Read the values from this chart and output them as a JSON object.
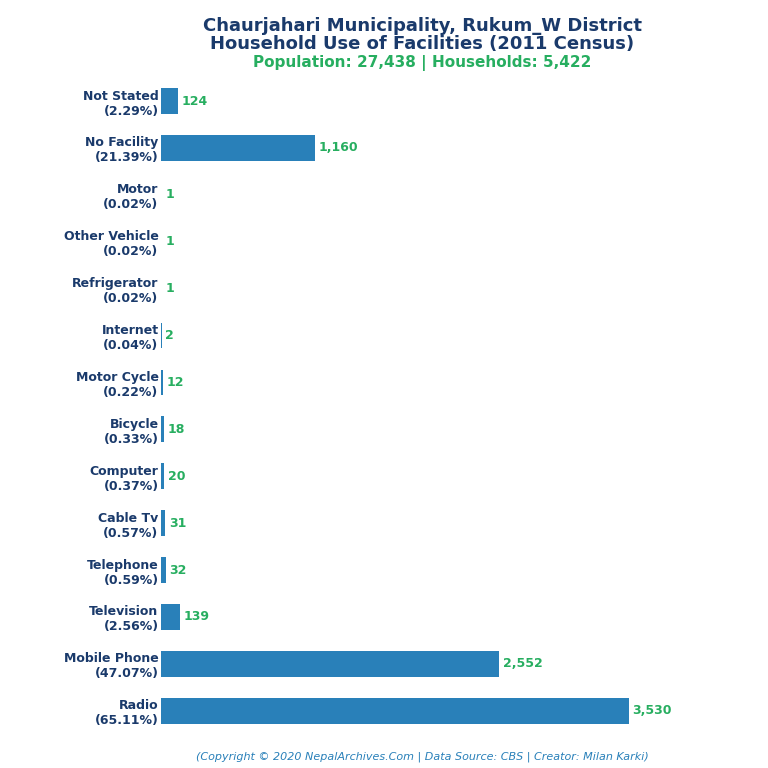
{
  "title_line1": "Chaurjahari Municipality, Rukum_W District",
  "title_line2": "Household Use of Facilities (2011 Census)",
  "subtitle": "Population: 27,438 | Households: 5,422",
  "footer": "(Copyright © 2020 NepalArchives.Com | Data Source: CBS | Creator: Milan Karki)",
  "categories": [
    "Not Stated\n(2.29%)",
    "No Facility\n(21.39%)",
    "Motor\n(0.02%)",
    "Other Vehicle\n(0.02%)",
    "Refrigerator\n(0.02%)",
    "Internet\n(0.04%)",
    "Motor Cycle\n(0.22%)",
    "Bicycle\n(0.33%)",
    "Computer\n(0.37%)",
    "Cable Tv\n(0.57%)",
    "Telephone\n(0.59%)",
    "Television\n(2.56%)",
    "Mobile Phone\n(47.07%)",
    "Radio\n(65.11%)"
  ],
  "values": [
    124,
    1160,
    1,
    1,
    1,
    2,
    12,
    18,
    20,
    31,
    32,
    139,
    2552,
    3530
  ],
  "bar_color": "#2980b9",
  "value_color": "#27ae60",
  "title_color": "#1a3a6b",
  "subtitle_color": "#27ae60",
  "footer_color": "#2980b9",
  "background_color": "#ffffff",
  "title_fontsize": 13,
  "subtitle_fontsize": 11,
  "label_fontsize": 9,
  "value_fontsize": 9,
  "footer_fontsize": 8
}
